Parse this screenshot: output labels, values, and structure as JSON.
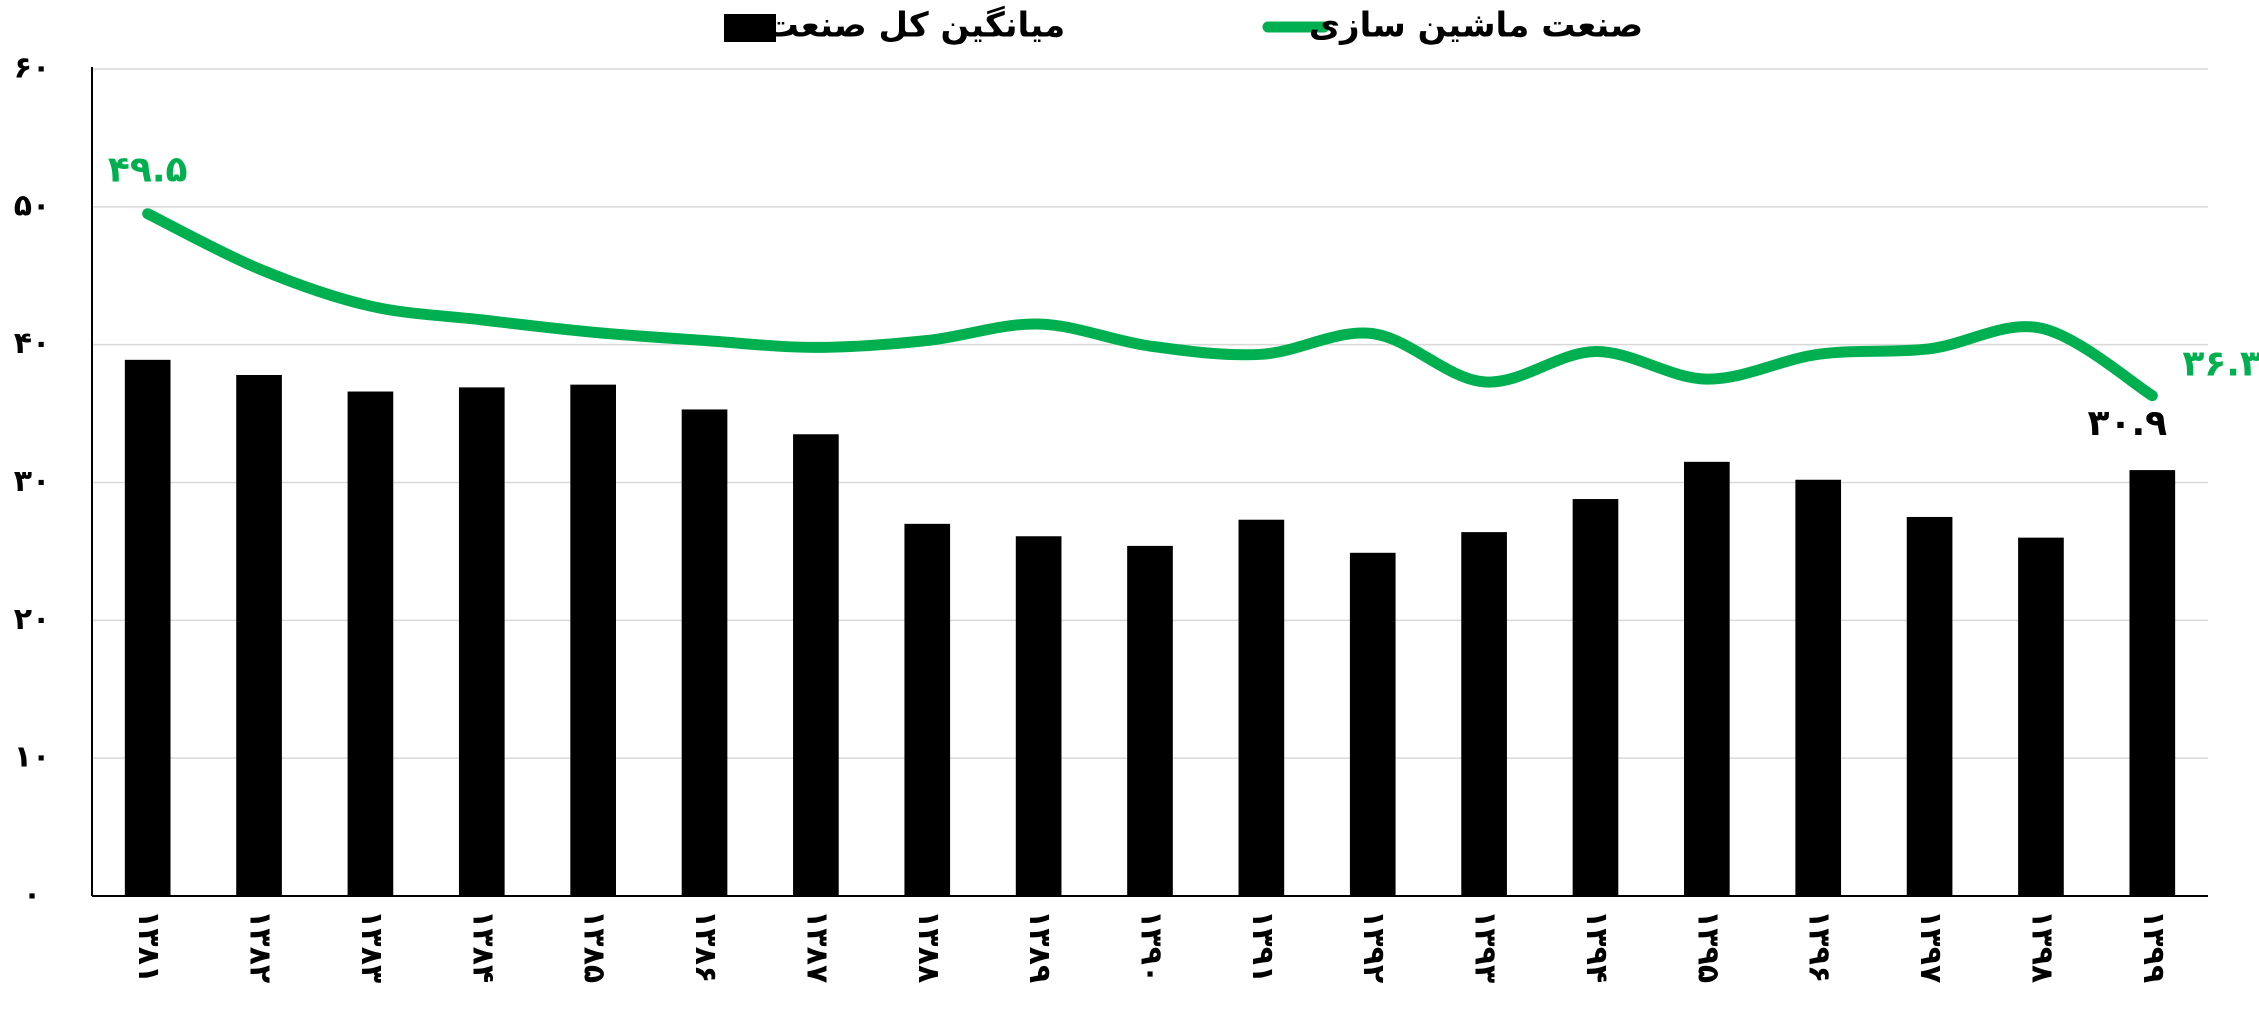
{
  "chart_data": {
    "type": "bar_line",
    "categories": [
      "۱۳۸۱",
      "۱۳۸۲",
      "۱۳۸۳",
      "۱۳۸۴",
      "۱۳۸۵",
      "۱۳۸۶",
      "۱۳۸۷",
      "۱۳۸۸",
      "۱۳۸۹",
      "۱۳۹۰",
      "۱۳۹۱",
      "۱۳۹۲",
      "۱۳۹۳",
      "۱۳۹۴",
      "۱۳۹۵",
      "۱۳۹۶",
      "۱۳۹۷",
      "۱۳۹۸",
      "۱۳۹۹"
    ],
    "series": [
      {
        "name": "صنعت ماشین سازی",
        "type": "line",
        "color": "#00b050",
        "values": [
          49.5,
          45.5,
          42.8,
          41.8,
          40.9,
          40.3,
          39.8,
          40.3,
          41.5,
          39.9,
          39.3,
          40.8,
          37.3,
          39.5,
          37.5,
          39.3,
          39.7,
          41.2,
          36.3
        ],
        "value_labels": [
          "۴۹.۵",
          null,
          null,
          null,
          null,
          null,
          null,
          null,
          null,
          null,
          null,
          null,
          null,
          null,
          null,
          null,
          null,
          null,
          "۳۶.۳"
        ]
      },
      {
        "name": "میانگین کل صنعت",
        "type": "bar",
        "color": "#000000",
        "values": [
          38.9,
          37.8,
          36.6,
          36.9,
          37.1,
          35.3,
          33.5,
          27.0,
          26.1,
          25.4,
          27.3,
          24.9,
          26.4,
          28.8,
          31.5,
          30.2,
          27.5,
          26.0,
          30.9
        ],
        "value_labels": [
          null,
          null,
          null,
          null,
          null,
          null,
          null,
          null,
          null,
          null,
          null,
          null,
          null,
          null,
          null,
          null,
          null,
          null,
          "۳۰.۹"
        ]
      }
    ],
    "ylim": [
      0,
      60
    ],
    "yticks": [
      {
        "value": 0,
        "label": "۰"
      },
      {
        "value": 10,
        "label": "۱۰"
      },
      {
        "value": 20,
        "label": "۲۰"
      },
      {
        "value": 30,
        "label": "۳۰"
      },
      {
        "value": 40,
        "label": "۴۰"
      },
      {
        "value": 50,
        "label": "۵۰"
      },
      {
        "value": 60,
        "label": "۶۰"
      }
    ],
    "grid": true,
    "legend": "top"
  }
}
